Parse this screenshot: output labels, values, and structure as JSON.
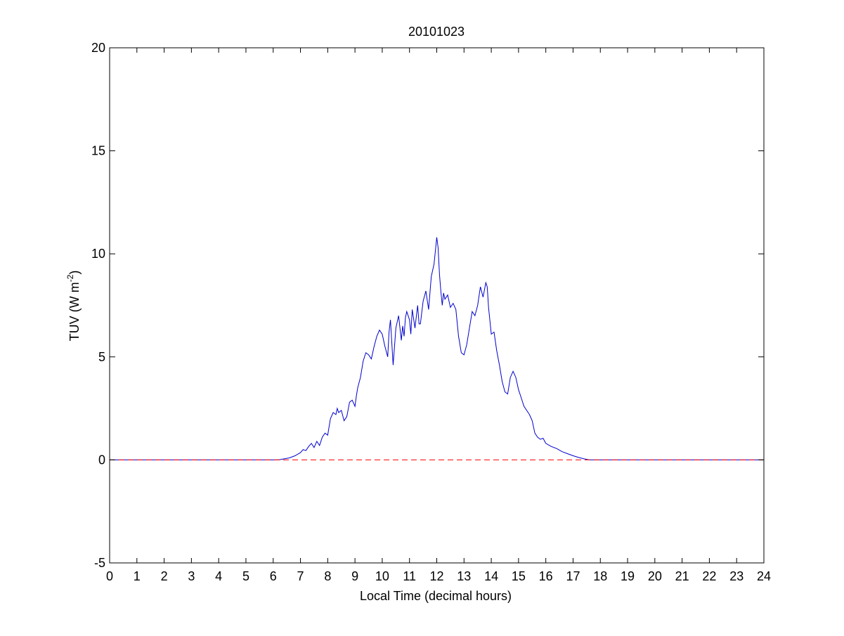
{
  "chart_data": {
    "type": "line",
    "title": "20101023",
    "xlabel": "Local Time (decimal hours)",
    "ylabel": "TUV (W m",
    "ylabel_sup": "-2",
    "ylabel_close": ")",
    "xlim": [
      0,
      24
    ],
    "ylim": [
      -5,
      20
    ],
    "xticks": [
      0,
      1,
      2,
      3,
      4,
      5,
      6,
      7,
      8,
      9,
      10,
      11,
      12,
      13,
      14,
      15,
      16,
      17,
      18,
      19,
      20,
      21,
      22,
      23,
      24
    ],
    "yticks": [
      -5,
      0,
      5,
      10,
      15,
      20
    ],
    "grid": false,
    "legend": "none",
    "series": [
      {
        "color": "#0000cc",
        "style": "solid",
        "x": [
          0,
          6.2,
          6.4,
          6.6,
          6.8,
          7.0,
          7.1,
          7.2,
          7.3,
          7.4,
          7.5,
          7.6,
          7.7,
          7.8,
          7.9,
          8.0,
          8.1,
          8.2,
          8.3,
          8.35,
          8.4,
          8.5,
          8.6,
          8.7,
          8.8,
          8.9,
          9.0,
          9.05,
          9.1,
          9.2,
          9.3,
          9.4,
          9.5,
          9.6,
          9.7,
          9.8,
          9.9,
          10.0,
          10.1,
          10.2,
          10.25,
          10.3,
          10.4,
          10.45,
          10.5,
          10.6,
          10.7,
          10.75,
          10.8,
          10.85,
          10.9,
          11.0,
          11.05,
          11.1,
          11.2,
          11.3,
          11.35,
          11.4,
          11.5,
          11.6,
          11.7,
          11.8,
          11.9,
          12.0,
          12.05,
          12.1,
          12.15,
          12.2,
          12.25,
          12.3,
          12.4,
          12.5,
          12.6,
          12.7,
          12.8,
          12.9,
          13.0,
          13.1,
          13.2,
          13.3,
          13.4,
          13.5,
          13.6,
          13.7,
          13.8,
          13.85,
          13.9,
          14.0,
          14.1,
          14.2,
          14.3,
          14.4,
          14.5,
          14.6,
          14.7,
          14.8,
          14.9,
          15.0,
          15.1,
          15.2,
          15.3,
          15.4,
          15.5,
          15.6,
          15.7,
          15.8,
          15.9,
          16.0,
          16.2,
          16.4,
          16.6,
          16.8,
          17.0,
          17.2,
          17.4,
          17.6,
          17.8,
          18.0,
          24
        ],
        "y": [
          0,
          0,
          0.05,
          0.1,
          0.2,
          0.35,
          0.5,
          0.45,
          0.65,
          0.8,
          0.6,
          0.9,
          0.7,
          1.1,
          1.3,
          1.2,
          2.0,
          2.3,
          2.2,
          2.5,
          2.3,
          2.4,
          1.9,
          2.1,
          2.8,
          2.9,
          2.6,
          3.1,
          3.5,
          4.0,
          4.8,
          5.2,
          5.1,
          4.9,
          5.5,
          6.0,
          6.3,
          6.1,
          5.5,
          5.0,
          6.2,
          6.8,
          4.6,
          5.5,
          6.4,
          7.0,
          5.8,
          6.5,
          6.0,
          6.9,
          7.2,
          6.8,
          6.1,
          7.3,
          6.4,
          7.5,
          6.6,
          6.6,
          7.7,
          8.2,
          7.3,
          8.9,
          9.5,
          10.8,
          10.3,
          9.0,
          8.2,
          7.5,
          8.1,
          7.8,
          8.0,
          7.4,
          7.6,
          7.3,
          6.0,
          5.2,
          5.1,
          5.6,
          6.4,
          7.2,
          7.0,
          7.5,
          8.4,
          7.9,
          8.6,
          8.4,
          7.4,
          6.1,
          6.2,
          5.3,
          4.6,
          3.8,
          3.3,
          3.2,
          4.0,
          4.3,
          4.0,
          3.4,
          3.0,
          2.6,
          2.4,
          2.2,
          1.9,
          1.3,
          1.1,
          1.0,
          1.05,
          0.8,
          0.65,
          0.55,
          0.4,
          0.3,
          0.2,
          0.12,
          0.05,
          0.0,
          0.0,
          0.0,
          0
        ]
      },
      {
        "color": "#ff0000",
        "style": "dashed",
        "x": [
          0,
          24
        ],
        "y": [
          0,
          0
        ]
      }
    ]
  }
}
